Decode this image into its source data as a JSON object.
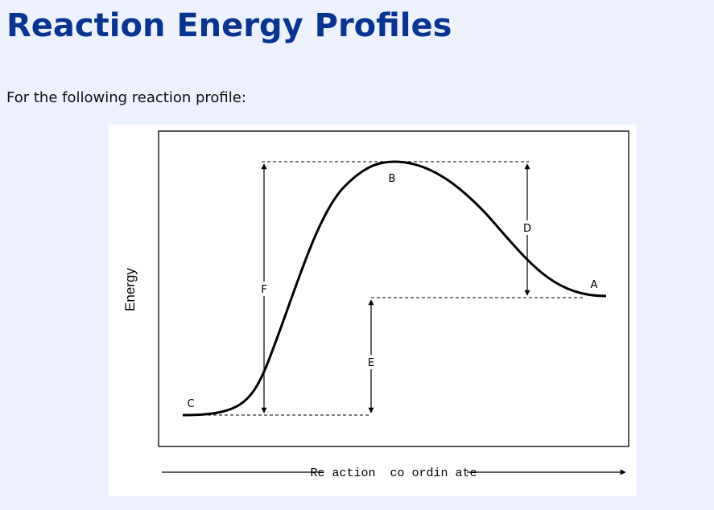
{
  "page": {
    "title": "Reaction Energy Profiles",
    "intro": "For the following reaction profile:"
  },
  "diagram": {
    "y_axis_label": "Energy",
    "x_axis_label": "Re action  co ordin ate",
    "points": {
      "A": "A",
      "B": "B",
      "C": "C"
    },
    "arrows": {
      "D": "D",
      "E": "E",
      "F": "F"
    },
    "colors": {
      "title": "#0a3494",
      "background": "#eef1ff",
      "panel": "#ffffff",
      "ink": "#000000"
    }
  }
}
